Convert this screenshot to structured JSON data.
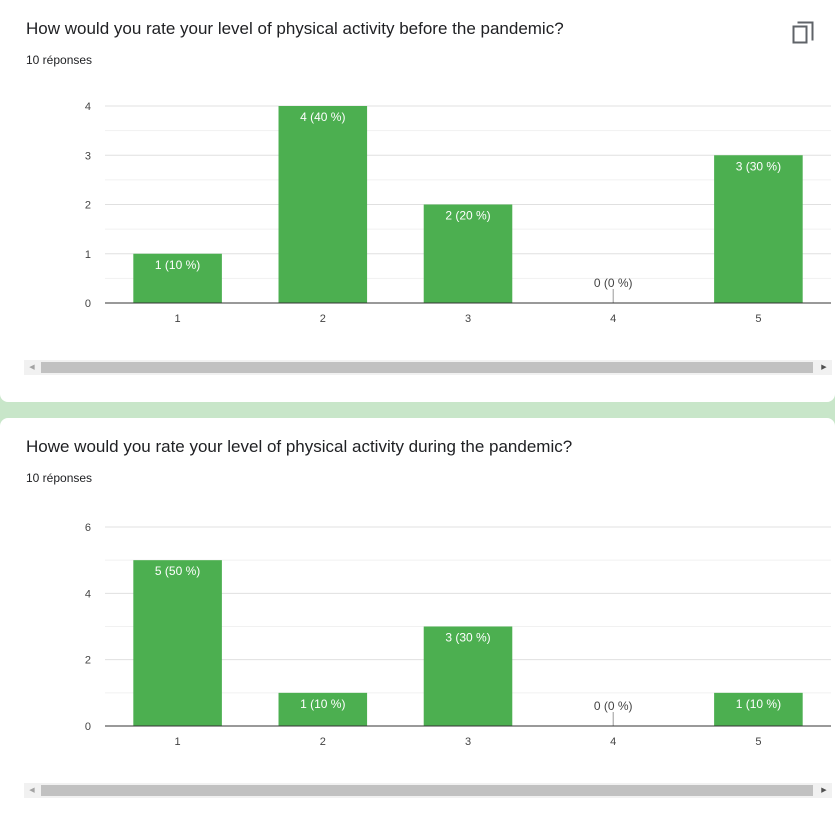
{
  "cards": [
    {
      "title": "How would you rate your level of physical activity before the pandemic?",
      "responses": "10 réponses",
      "copy_icon": "copy-icon",
      "chart_data": {
        "type": "bar",
        "categories": [
          "1",
          "2",
          "3",
          "4",
          "5"
        ],
        "values": [
          1,
          4,
          2,
          0,
          3
        ],
        "data_labels": [
          "1 (10 %)",
          "4 (40 %)",
          "2 (20 %)",
          "0 (0 %)",
          "3 (30 %)"
        ],
        "yticks": [
          0,
          1,
          2,
          3,
          4
        ],
        "ylim": [
          0,
          4
        ],
        "grid": true,
        "bar_color": "#4caf50"
      }
    },
    {
      "title": "Howe would you rate your level of physical activity during the pandemic?",
      "responses": "10 réponses",
      "chart_data": {
        "type": "bar",
        "categories": [
          "1",
          "2",
          "3",
          "4",
          "5"
        ],
        "values": [
          5,
          1,
          3,
          0,
          1
        ],
        "data_labels": [
          "5 (50 %)",
          "1 (10 %)",
          "3 (30 %)",
          "0 (0 %)",
          "1 (10 %)"
        ],
        "yticks": [
          0,
          2,
          4,
          6
        ],
        "ylim": [
          0,
          6
        ],
        "grid": true,
        "bar_color": "#4caf50"
      }
    }
  ],
  "scrollbar": {
    "left_icon": "scroll-left-arrow-icon",
    "right_icon": "scroll-right-arrow-icon",
    "left_glyph": "◀",
    "right_glyph": "▶"
  }
}
